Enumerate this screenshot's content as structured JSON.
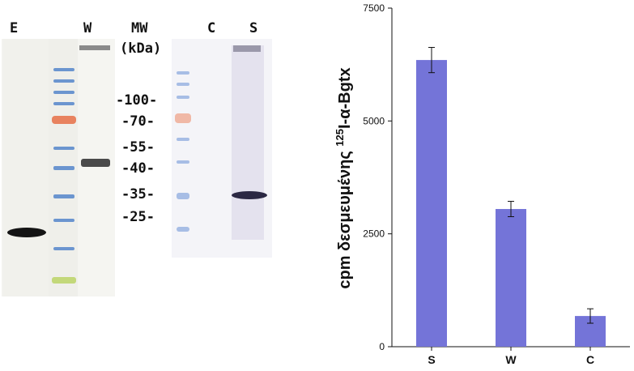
{
  "blot": {
    "lane_labels": {
      "E": "E",
      "W": "W",
      "MW": "MW",
      "C": "C",
      "S": "S"
    },
    "mw_unit": "(kDa)",
    "markers": [
      "-100-",
      "-70-",
      "-55-",
      "-40-",
      "-35-",
      "-25-"
    ]
  },
  "chart_data": {
    "type": "bar",
    "categories": [
      "S",
      "W",
      "C"
    ],
    "values": [
      6350,
      3050,
      680
    ],
    "errors": [
      280,
      170,
      160
    ],
    "ylim": [
      0,
      7500
    ],
    "yticks": [
      "0",
      "2500",
      "5000",
      "7500"
    ],
    "ylabel_parts": [
      "cpm δεσμευμένης ",
      "125",
      "I-α-Bgtx"
    ],
    "bar_color": "#7474d8",
    "grid": false
  }
}
